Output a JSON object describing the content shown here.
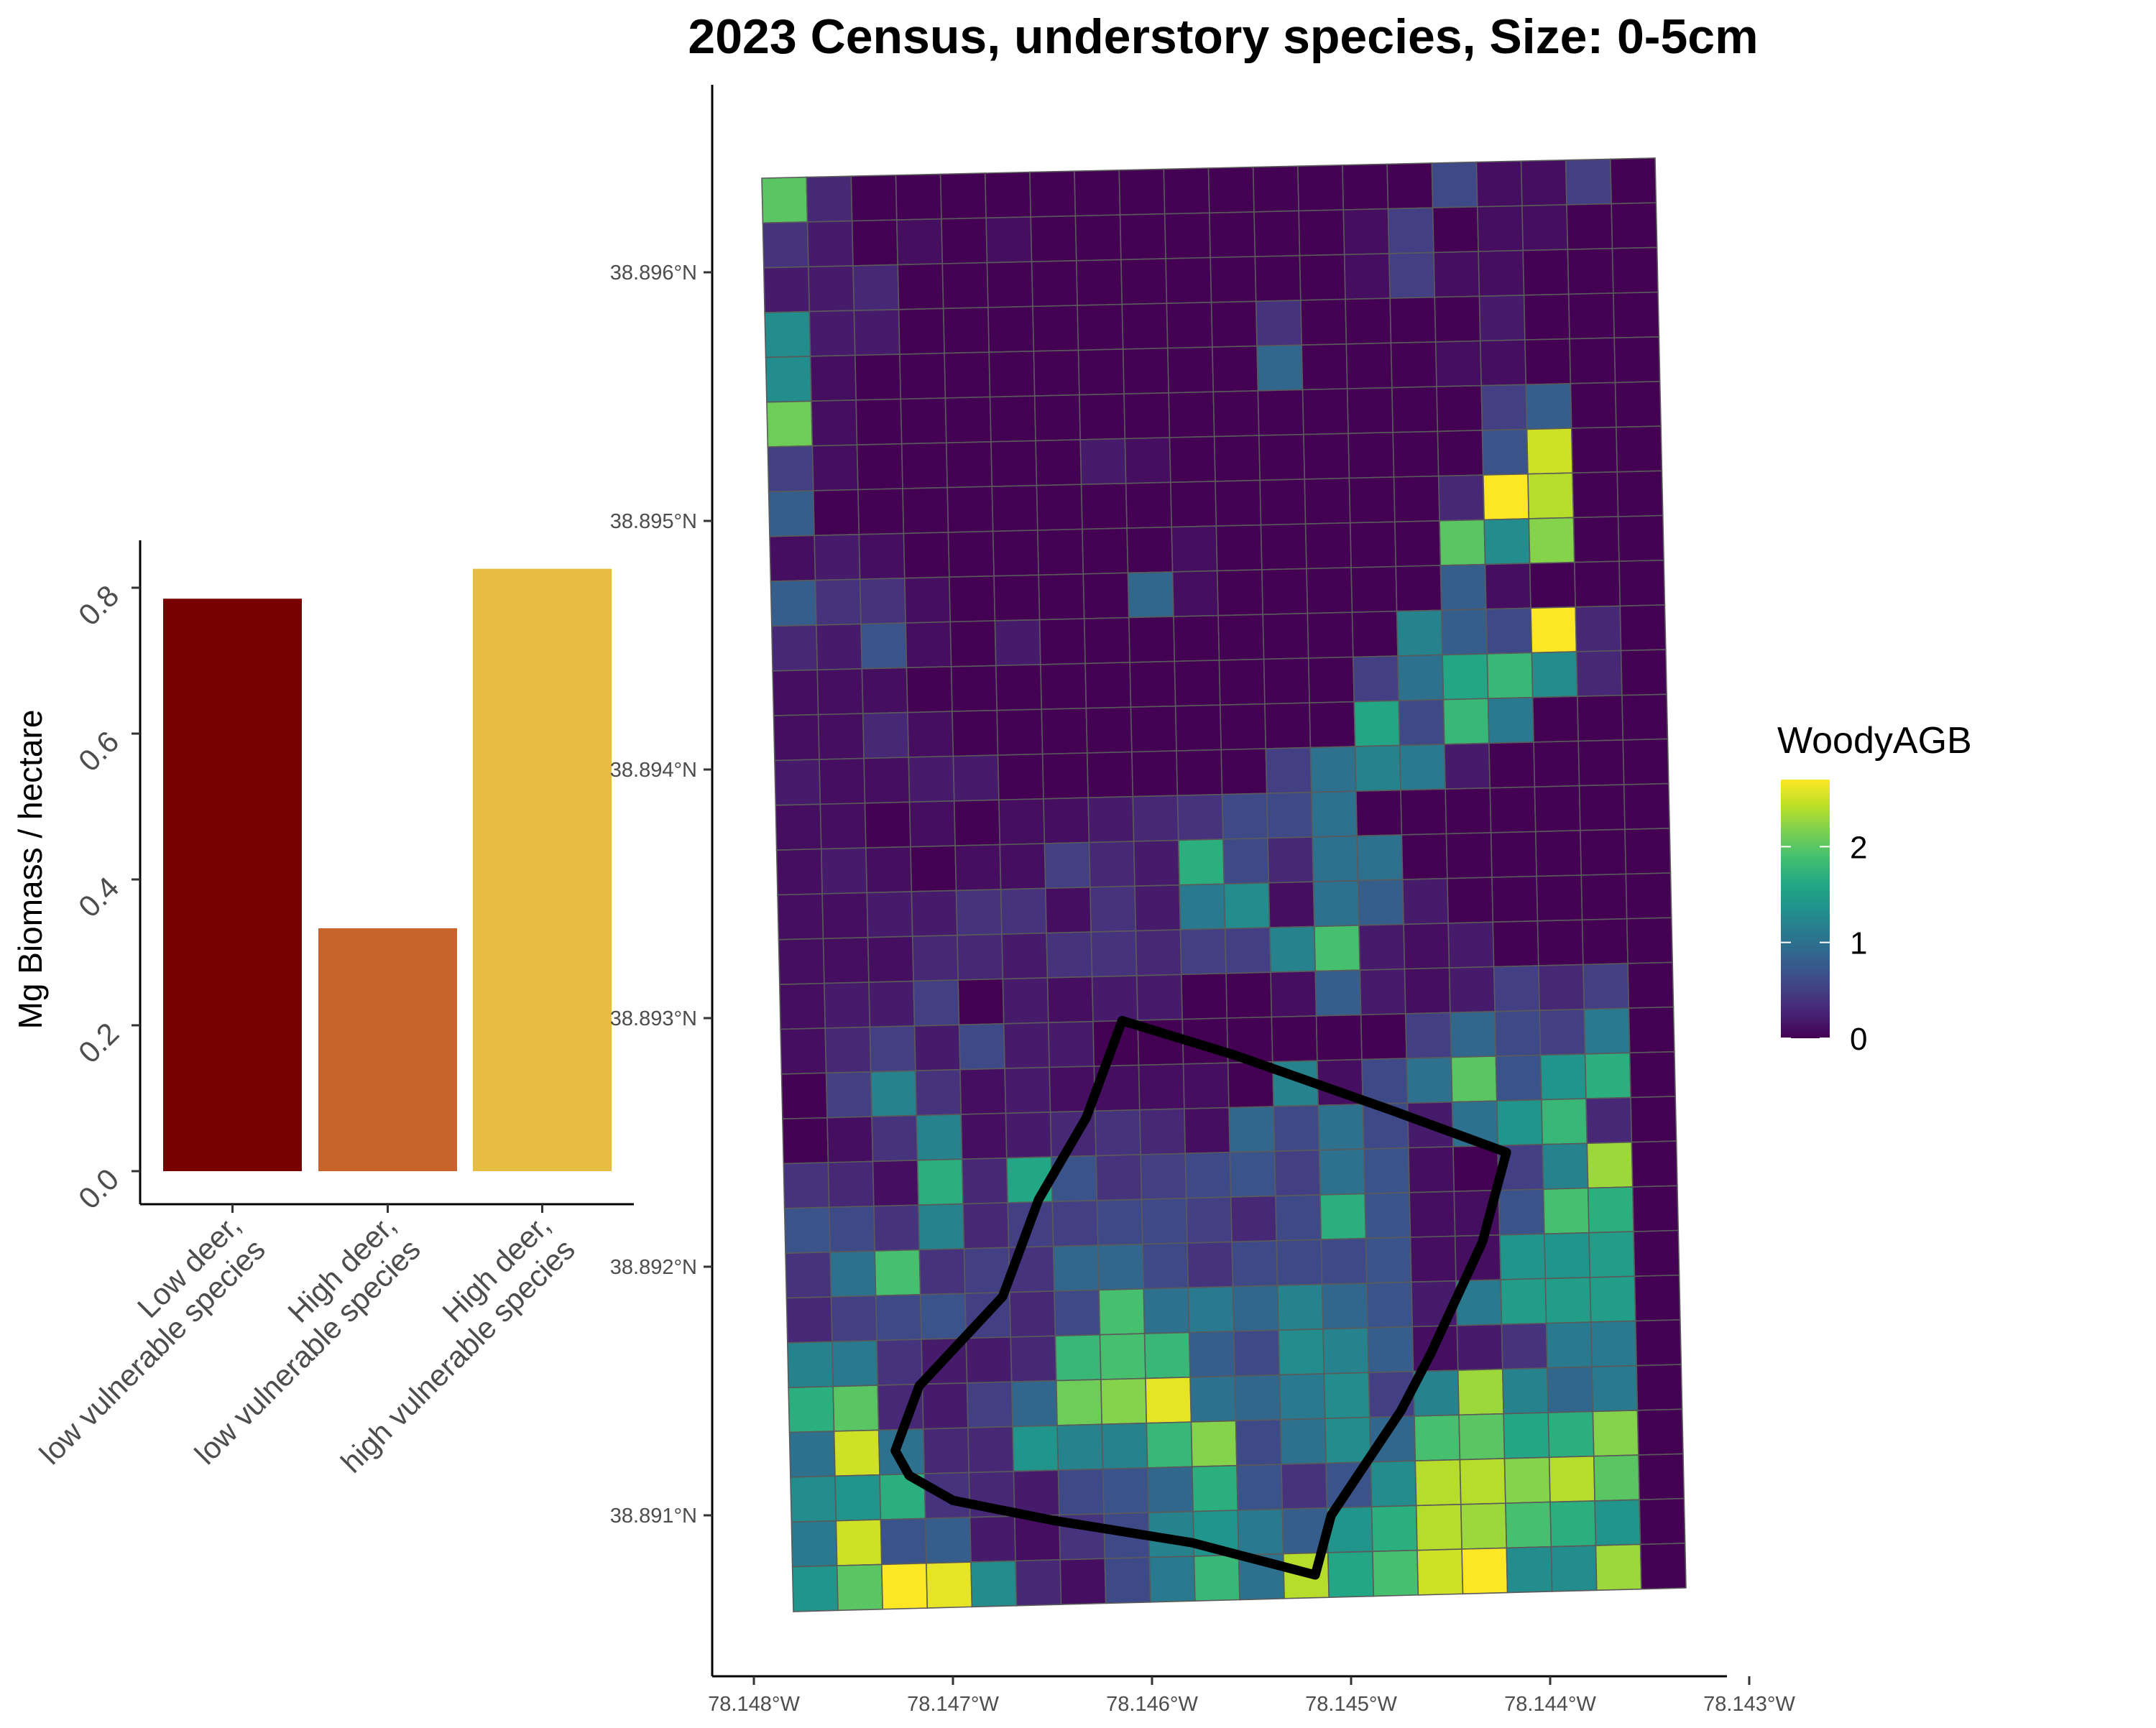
{
  "title": "2023 Census, understory species, Size: 0-5cm",
  "colors": {
    "low_deer_low_vuln": "#780000",
    "high_deer_low_vuln": "#c8642a",
    "high_deer_high_vuln": "#e6bd40"
  },
  "chart_data": [
    {
      "type": "bar",
      "title": "",
      "xlabel": "",
      "ylabel": "Mg Biomass / hectare",
      "ylim": [
        0,
        0.85
      ],
      "yticks": [
        "0.0",
        "0.2",
        "0.4",
        "0.6",
        "0.8"
      ],
      "categories": [
        [
          "Low deer,",
          "low vulnerable species"
        ],
        [
          "High deer,",
          "low vulnerable species"
        ],
        [
          "High deer,",
          "high vulnerable species"
        ]
      ],
      "values": [
        0.785,
        0.333,
        0.826
      ],
      "colors": [
        "#780000",
        "#c8642a",
        "#e6bd40"
      ]
    },
    {
      "type": "heatmap",
      "title": "2023 Census, understory species, Size: 0-5cm",
      "x_ticks": [
        "78.148°W",
        "78.147°W",
        "78.146°W",
        "78.145°W",
        "78.144°W",
        "78.143°W"
      ],
      "y_ticks": [
        "38.896°N",
        "38.895°N",
        "38.894°N",
        "38.893°N",
        "38.892°N",
        "38.891°N"
      ],
      "legend": {
        "title": "WoodyAGB",
        "ticks": [
          "0",
          "1",
          "2"
        ],
        "range": [
          0,
          2.7
        ],
        "placement": "right"
      },
      "grid": {
        "columns": 20,
        "rows": 32,
        "values": [
          [
            2.0,
            0.3,
            0,
            0,
            0,
            0,
            0,
            0,
            0,
            0,
            0,
            0,
            0,
            0,
            0,
            0.6,
            0.1,
            0.1,
            0.5,
            0
          ],
          [
            0.4,
            0.2,
            0,
            0.1,
            0,
            0.1,
            0,
            0,
            0,
            0,
            0,
            0,
            0,
            0.1,
            0.5,
            0,
            0.1,
            0.1,
            0,
            0
          ],
          [
            0.2,
            0.2,
            0.3,
            0,
            0,
            0,
            0,
            0,
            0,
            0,
            0,
            0,
            0,
            0.1,
            0.5,
            0.1,
            0.1,
            0,
            0,
            0
          ],
          [
            1.3,
            0.2,
            0.2,
            0,
            0,
            0,
            0,
            0,
            0,
            0,
            0,
            0.4,
            0,
            0,
            0,
            0,
            0.2,
            0,
            0,
            0
          ],
          [
            1.3,
            0.1,
            0,
            0,
            0,
            0,
            0,
            0,
            0,
            0,
            0,
            0.9,
            0,
            0,
            0,
            0.1,
            0.1,
            0,
            0,
            0
          ],
          [
            2.1,
            0.1,
            0,
            0,
            0,
            0,
            0,
            0,
            0,
            0,
            0,
            0,
            0,
            0,
            0,
            0,
            0.5,
            0.8,
            0,
            0
          ],
          [
            0.5,
            0.1,
            0,
            0,
            0,
            0,
            0,
            0.2,
            0.1,
            0,
            0,
            0,
            0,
            0,
            0,
            0,
            0.7,
            2.5,
            0,
            0
          ],
          [
            0.8,
            0,
            0,
            0,
            0,
            0,
            0,
            0,
            0,
            0,
            0,
            0,
            0,
            0,
            0,
            0.3,
            2.7,
            2.4,
            0,
            0
          ],
          [
            0.1,
            0.2,
            0.1,
            0,
            0,
            0,
            0,
            0,
            0,
            0.1,
            0,
            0,
            0,
            0,
            0,
            2.0,
            1.3,
            2.2,
            0,
            0
          ],
          [
            0.8,
            0.4,
            0.4,
            0.1,
            0,
            0,
            0,
            0,
            0.9,
            0.1,
            0,
            0,
            0,
            0,
            0,
            0.8,
            0.1,
            0,
            0,
            0
          ],
          [
            0.3,
            0.2,
            0.7,
            0.1,
            0,
            0.2,
            0,
            0,
            0,
            0,
            0,
            0,
            0,
            0,
            1.2,
            0.8,
            0.6,
            2.7,
            0.3,
            0
          ],
          [
            0.1,
            0.1,
            0.1,
            0,
            0,
            0,
            0,
            0,
            0,
            0,
            0,
            0,
            0,
            0.5,
            1.0,
            1.6,
            1.8,
            1.3,
            0.3,
            0
          ],
          [
            0.1,
            0.1,
            0.3,
            0.1,
            0,
            0,
            0,
            0,
            0,
            0,
            0,
            0,
            0,
            1.6,
            0.6,
            1.8,
            1.1,
            0,
            0,
            0
          ],
          [
            0.2,
            0.1,
            0.1,
            0.2,
            0.2,
            0,
            0,
            0,
            0,
            0,
            0,
            0.5,
            1.0,
            1.2,
            1.1,
            0.2,
            0,
            0,
            0,
            0
          ],
          [
            0.1,
            0.1,
            0,
            0.1,
            0,
            0.1,
            0.1,
            0.2,
            0.3,
            0.4,
            0.6,
            0.6,
            1.0,
            0,
            0,
            0,
            0,
            0,
            0,
            0
          ],
          [
            0.1,
            0.2,
            0.1,
            0,
            0.1,
            0.1,
            0.5,
            0.3,
            0.2,
            1.7,
            0.6,
            0.3,
            1.0,
            1.0,
            0,
            0,
            0,
            0,
            0,
            0
          ],
          [
            0.1,
            0.1,
            0.2,
            0.2,
            0.4,
            0.4,
            0.1,
            0.4,
            0.2,
            1.1,
            1.3,
            0.1,
            1.0,
            0.8,
            0.2,
            0,
            0,
            0,
            0,
            0
          ],
          [
            0.1,
            0.1,
            0.1,
            0.3,
            0.3,
            0.2,
            0.4,
            0.4,
            0.3,
            0.5,
            0.5,
            1.2,
            1.9,
            0.2,
            0.1,
            0.2,
            0,
            0,
            0,
            0
          ],
          [
            0.1,
            0.2,
            0.2,
            0.5,
            0,
            0.2,
            0.1,
            0.2,
            0.2,
            0,
            0,
            0.1,
            0.8,
            0.2,
            0.1,
            0.2,
            0.5,
            0.3,
            0.5,
            0
          ],
          [
            0.1,
            0.3,
            0.5,
            0.2,
            0.6,
            0.2,
            0.2,
            0,
            0,
            0,
            0,
            0,
            0,
            0,
            0.5,
            0.9,
            0.6,
            0.5,
            1.1,
            0
          ],
          [
            0,
            0.5,
            1.2,
            0.4,
            0.1,
            0.2,
            0.1,
            0.1,
            0.1,
            0.1,
            0,
            1.2,
            0.1,
            0.6,
            1.0,
            2.0,
            0.7,
            1.4,
            1.7,
            0
          ],
          [
            0,
            0.1,
            0.4,
            1.2,
            0.1,
            0.2,
            0.3,
            0.4,
            0.3,
            0.1,
            0.9,
            0.6,
            1.0,
            0.6,
            0.2,
            1.0,
            1.4,
            1.8,
            0.3,
            0
          ],
          [
            0.4,
            0.3,
            0.1,
            1.7,
            0.3,
            1.6,
            0.7,
            0.4,
            0.5,
            0.6,
            0.7,
            0.5,
            1.0,
            0.7,
            0.1,
            0,
            0.5,
            1.2,
            2.3,
            0
          ],
          [
            0.7,
            0.6,
            0.4,
            1.2,
            0.3,
            0.5,
            0.5,
            0.6,
            0.6,
            0.5,
            0.3,
            0.6,
            1.7,
            0.7,
            0.1,
            0.1,
            0.7,
            1.9,
            1.7,
            0
          ],
          [
            0.4,
            1.0,
            1.9,
            0.4,
            0.5,
            0.4,
            0.9,
            0.9,
            0.6,
            0.4,
            0.6,
            0.6,
            0.6,
            0.7,
            0.1,
            0.1,
            1.4,
            1.4,
            1.5,
            0
          ],
          [
            0.3,
            0.5,
            0.6,
            0.7,
            0.5,
            0.3,
            0.6,
            1.9,
            1.0,
            1.1,
            0.9,
            1.2,
            0.9,
            0.7,
            0.2,
            1.1,
            1.5,
            1.5,
            1.5,
            0
          ],
          [
            1.2,
            1.1,
            0.4,
            0.2,
            0.2,
            0.3,
            1.8,
            1.9,
            1.8,
            0.8,
            0.6,
            1.3,
            1.2,
            0.8,
            0.1,
            0.2,
            0.4,
            1.1,
            1.1,
            0
          ],
          [
            1.7,
            2.0,
            0.3,
            0.2,
            0.5,
            0.9,
            2.1,
            2.2,
            2.6,
            1.0,
            0.9,
            1.1,
            1.3,
            0.5,
            1.2,
            2.3,
            1.2,
            0.9,
            1.1,
            0
          ],
          [
            1.0,
            2.5,
            1.0,
            0.3,
            0.3,
            1.4,
            1.2,
            1.2,
            1.8,
            2.2,
            0.6,
            1.0,
            1.3,
            0.9,
            1.9,
            2.0,
            1.6,
            1.7,
            2.2,
            0
          ],
          [
            1.3,
            1.4,
            1.7,
            0.4,
            0.3,
            0.2,
            0.6,
            0.7,
            0.9,
            1.7,
            0.7,
            0.4,
            0.7,
            1.3,
            2.4,
            2.4,
            2.2,
            2.4,
            2.0,
            0
          ],
          [
            1.1,
            2.5,
            0.7,
            0.8,
            0.2,
            0.1,
            0.4,
            0.6,
            1.2,
            1.4,
            1.1,
            0.8,
            1.4,
            1.7,
            2.4,
            2.3,
            1.9,
            1.7,
            1.4,
            0
          ],
          [
            1.4,
            2.0,
            2.8,
            2.6,
            1.3,
            0.3,
            0.1,
            0.6,
            1.1,
            1.8,
            1.0,
            2.4,
            1.6,
            1.9,
            2.5,
            2.7,
            1.3,
            1.3,
            2.3,
            0
          ]
        ]
      },
      "outline": {
        "type": "polygon",
        "stroke": "#000000",
        "vertices_lonlat": [
          [
            -78.14615,
            38.89299
          ],
          [
            -78.14558,
            38.89285
          ],
          [
            -78.1448,
            38.89263
          ],
          [
            -78.14422,
            38.89246
          ],
          [
            -78.14434,
            38.8921
          ],
          [
            -78.1446,
            38.89165
          ],
          [
            -78.14475,
            38.89142
          ],
          [
            -78.1451,
            38.891
          ],
          [
            -78.14518,
            38.89076
          ],
          [
            -78.1458,
            38.89089
          ],
          [
            -78.1465,
            38.89098
          ],
          [
            -78.147,
            38.89106
          ],
          [
            -78.14722,
            38.89116
          ],
          [
            -78.14729,
            38.89126
          ],
          [
            -78.14717,
            38.89152
          ],
          [
            -78.14675,
            38.89188
          ],
          [
            -78.14657,
            38.89227
          ],
          [
            -78.14633,
            38.8926
          ]
        ]
      }
    }
  ]
}
